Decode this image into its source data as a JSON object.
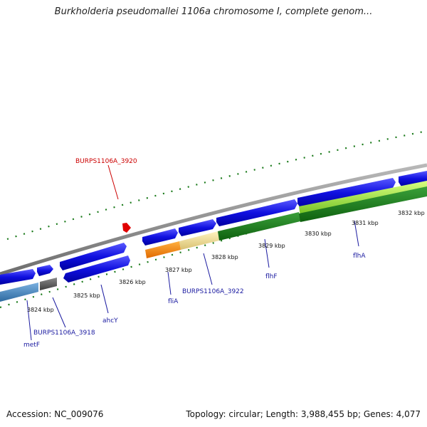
{
  "title": "Burkholderia pseudomallei 1106a chromosome I, complete genom...",
  "footer": {
    "accession": "Accession: NC_009076",
    "topology": "Topology: circular; Length: 3,988,455 bp; Genes: 4,077"
  },
  "colors": {
    "backbone": "#8c8c8c",
    "gene_blue": "#1010e0",
    "tick": "#1a7a1a",
    "highlight": "#e00000",
    "label_blue": "#1a1aa0",
    "label_red": "#cc0000"
  },
  "scale_labels": [
    "3824 kbp",
    "3825 kbp",
    "3826 kbp",
    "3827 kbp",
    "3828 kbp",
    "3829 kbp",
    "3830 kbp",
    "3831 kbp",
    "3832 kbp"
  ],
  "gene_labels": [
    "metF",
    "BURPS1106A_3918",
    "ahcY",
    "fliA",
    "BURPS1106A_3922",
    "flhF",
    "flhA",
    "BURPS1106A_3920"
  ]
}
